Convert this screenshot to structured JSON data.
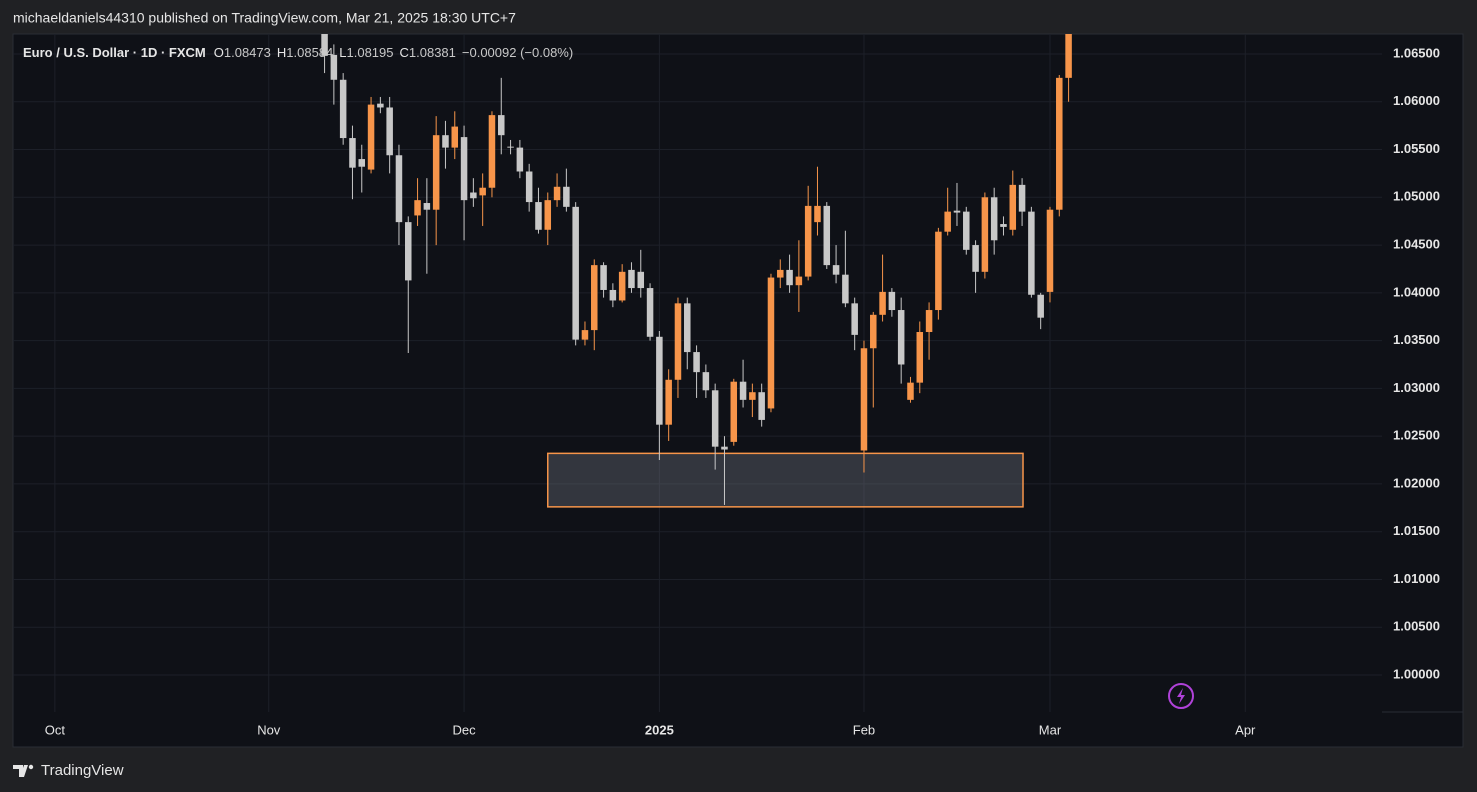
{
  "chart_data": {
    "type": "candlestick",
    "published": "michaeldaniels44310 published on TradingView.com, Mar 21, 2025 18:30 UTC+7",
    "symbol": "Euro / U.S. Dollar · 1D · FXCM",
    "ohlc": [
      {
        "label": "O",
        "value": 1.08473
      },
      {
        "label": "H",
        "value": 1.08584
      },
      {
        "label": "L",
        "value": 1.08195
      },
      {
        "label": "C",
        "value": 1.08381
      }
    ],
    "change": "−0.00092 (−0.08%)",
    "brand": "TradingView",
    "up_color": "#f7954a",
    "down_color": "#c8c8c8",
    "grid": true,
    "xlim": [
      -4.5,
      142.7
    ],
    "xticks": [
      {
        "value": 0,
        "label": "Oct"
      },
      {
        "value": 23,
        "label": "Nov"
      },
      {
        "value": 44,
        "label": "Dec"
      },
      {
        "value": 65,
        "label": "2025"
      },
      {
        "value": 87,
        "label": "Feb"
      },
      {
        "value": 107,
        "label": "Mar"
      },
      {
        "value": 128,
        "label": "Apr"
      }
    ],
    "ylim": [
      0.99613,
      1.06709
    ],
    "yticks": [
      {
        "value": 1.0,
        "label": "1.00000"
      },
      {
        "value": 1.005,
        "label": "1.00500"
      },
      {
        "value": 1.01,
        "label": "1.01000"
      },
      {
        "value": 1.015,
        "label": "1.01500"
      },
      {
        "value": 1.02,
        "label": "1.02000"
      },
      {
        "value": 1.025,
        "label": "1.02500"
      },
      {
        "value": 1.03,
        "label": "1.03000"
      },
      {
        "value": 1.035,
        "label": "1.03500"
      },
      {
        "value": 1.04,
        "label": "1.04000"
      },
      {
        "value": 1.045,
        "label": "1.04500"
      },
      {
        "value": 1.05,
        "label": "1.05000"
      },
      {
        "value": 1.055,
        "label": "1.05500"
      },
      {
        "value": 1.06,
        "label": "1.06000"
      },
      {
        "value": 1.065,
        "label": "1.06500"
      }
    ],
    "zone": {
      "x": [
        53,
        104.1
      ],
      "y": [
        1.0232,
        1.0176
      ],
      "color": "#f7954a"
    },
    "x": [
      29,
      30,
      31,
      32,
      33,
      34,
      35,
      36,
      37,
      38,
      39,
      40,
      41,
      42,
      43,
      44,
      45,
      46,
      47,
      48,
      49,
      50,
      51,
      52,
      53,
      54,
      55,
      56,
      57,
      58,
      59,
      60,
      61,
      62,
      63,
      64,
      65,
      66,
      67,
      68,
      69,
      70,
      71,
      72,
      73,
      74,
      75,
      76,
      77,
      78,
      79,
      80,
      81,
      82,
      83,
      84,
      85,
      86,
      87,
      88,
      89,
      90,
      91,
      92,
      93,
      94,
      95,
      96,
      97,
      98,
      99,
      100,
      101,
      102,
      103,
      104,
      105,
      106,
      107,
      108,
      109
    ],
    "open": [
      1.069,
      1.0649,
      1.0623,
      1.0562,
      1.054,
      1.0529,
      1.0598,
      1.0594,
      1.0544,
      1.0474,
      1.0481,
      1.0494,
      1.0487,
      1.0565,
      1.0552,
      1.0563,
      1.0505,
      1.0502,
      1.051,
      1.0586,
      1.0553,
      1.0552,
      1.0527,
      1.0495,
      1.0466,
      1.0497,
      1.0511,
      1.049,
      1.0351,
      1.0361,
      1.0429,
      1.0403,
      1.0392,
      1.0424,
      1.0422,
      1.0405,
      1.0354,
      1.0262,
      1.0309,
      1.0389,
      1.0338,
      1.0317,
      1.0298,
      1.0239,
      1.0244,
      1.0307,
      1.0288,
      1.0296,
      1.0279,
      1.0416,
      1.0424,
      1.0408,
      1.0417,
      1.0474,
      1.0491,
      1.0429,
      1.0419,
      1.0389,
      1.0235,
      1.0342,
      1.0377,
      1.0401,
      1.0382,
      1.0288,
      1.0306,
      1.0359,
      1.0382,
      1.0464,
      1.0486,
      1.0485,
      1.045,
      1.0422,
      1.05,
      1.0472,
      1.0466,
      1.0513,
      1.0485,
      1.0398,
      1.0401,
      1.0487,
      1.0625
    ],
    "high": [
      1.07,
      1.066,
      1.063,
      1.0575,
      1.0555,
      1.0605,
      1.0605,
      1.0605,
      1.0555,
      1.048,
      1.052,
      1.052,
      1.0585,
      1.058,
      1.059,
      1.0575,
      1.052,
      1.0525,
      1.059,
      1.0625,
      1.056,
      1.056,
      1.0535,
      1.051,
      1.0505,
      1.0525,
      1.053,
      1.0495,
      1.037,
      1.0435,
      1.0432,
      1.041,
      1.043,
      1.0432,
      1.0445,
      1.041,
      1.036,
      1.032,
      1.0395,
      1.0395,
      1.0345,
      1.0325,
      1.0305,
      1.025,
      1.031,
      1.033,
      1.0305,
      1.0305,
      1.042,
      1.0435,
      1.044,
      1.0455,
      1.0512,
      1.0532,
      1.0495,
      1.045,
      1.0465,
      1.0395,
      1.035,
      1.038,
      1.044,
      1.0405,
      1.0395,
      1.0312,
      1.037,
      1.039,
      1.0468,
      1.051,
      1.0515,
      1.049,
      1.0455,
      1.0505,
      1.051,
      1.048,
      1.0528,
      1.052,
      1.049,
      1.04,
      1.049,
      1.0628,
      1.0795
    ],
    "low": [
      1.063,
      1.0597,
      1.0555,
      1.0498,
      1.0505,
      1.0525,
      1.0588,
      1.0525,
      1.045,
      1.0337,
      1.047,
      1.042,
      1.045,
      1.053,
      1.054,
      1.0455,
      1.049,
      1.047,
      1.05,
      1.0545,
      1.0545,
      1.052,
      1.0485,
      1.0462,
      1.045,
      1.049,
      1.0485,
      1.0345,
      1.0345,
      1.034,
      1.0395,
      1.0385,
      1.039,
      1.04,
      1.0395,
      1.035,
      1.0225,
      1.0245,
      1.029,
      1.032,
      1.029,
      1.029,
      1.0215,
      1.0178,
      1.024,
      1.028,
      1.027,
      1.026,
      1.0275,
      1.0405,
      1.04,
      1.038,
      1.0413,
      1.046,
      1.0425,
      1.041,
      1.0385,
      1.034,
      1.0212,
      1.028,
      1.037,
      1.0375,
      1.0305,
      1.0285,
      1.0295,
      1.033,
      1.0372,
      1.046,
      1.047,
      1.044,
      1.04,
      1.0415,
      1.044,
      1.046,
      1.046,
      1.047,
      1.0395,
      1.0362,
      1.039,
      1.048,
      1.06
    ],
    "close": [
      1.0648,
      1.0623,
      1.0562,
      1.0531,
      1.0532,
      1.0597,
      1.0594,
      1.0544,
      1.0474,
      1.0413,
      1.0497,
      1.0487,
      1.0565,
      1.0552,
      1.0574,
      1.0497,
      1.0499,
      1.051,
      1.0586,
      1.0565,
      1.0552,
      1.0527,
      1.0495,
      1.0466,
      1.0497,
      1.0511,
      1.049,
      1.0351,
      1.0361,
      1.0429,
      1.0403,
      1.0392,
      1.0422,
      1.0405,
      1.0405,
      1.0354,
      1.0262,
      1.0309,
      1.0389,
      1.0338,
      1.0317,
      1.0298,
      1.0239,
      1.0236,
      1.0307,
      1.0288,
      1.0296,
      1.0267,
      1.0416,
      1.0424,
      1.0408,
      1.0417,
      1.0491,
      1.0491,
      1.0429,
      1.0419,
      1.0389,
      1.0356,
      1.0342,
      1.0377,
      1.0401,
      1.0382,
      1.0325,
      1.0306,
      1.0359,
      1.0382,
      1.0464,
      1.0485,
      1.0484,
      1.0445,
      1.0422,
      1.05,
      1.0455,
      1.0469,
      1.0513,
      1.0485,
      1.0398,
      1.0374,
      1.0487,
      1.0625,
      1.079
    ]
  }
}
